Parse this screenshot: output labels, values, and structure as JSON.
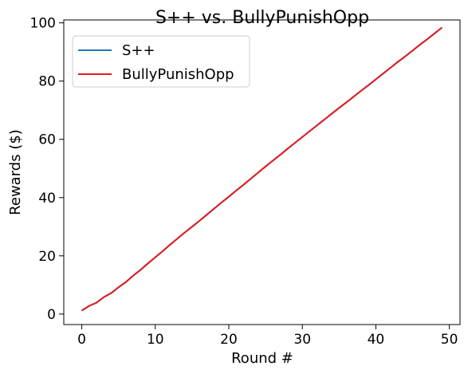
{
  "chart_data": {
    "type": "line",
    "title": "S++ vs. BullyPunishOpp",
    "xlabel": "Round #",
    "ylabel": "Rewards ($)",
    "xlim": [
      -2.45,
      51.45
    ],
    "ylim": [
      -3.6,
      101.0
    ],
    "xticks": [
      0,
      10,
      20,
      30,
      40,
      50
    ],
    "yticks": [
      0,
      20,
      40,
      60,
      80,
      100
    ],
    "legend_position": "top-left",
    "series": [
      {
        "name": "S++",
        "color": "#1f77b4",
        "x": [
          0,
          1,
          2,
          3,
          4,
          5,
          6,
          7,
          8,
          9,
          10,
          11,
          12,
          13,
          14,
          15,
          16,
          17,
          18,
          19,
          20,
          21,
          22,
          23,
          24,
          25,
          26,
          27,
          28,
          29,
          30,
          31,
          32,
          33,
          34,
          35,
          36,
          37,
          38,
          39,
          40,
          41,
          42,
          43,
          44,
          45,
          46,
          47,
          48,
          49
        ],
        "values": [
          1.2,
          2.8,
          3.9,
          5.8,
          7.2,
          9.2,
          11.0,
          13.2,
          15.2,
          17.4,
          19.5,
          21.6,
          23.8,
          25.9,
          28.0,
          30.0,
          32.0,
          34.1,
          36.2,
          38.3,
          40.3,
          42.4,
          44.4,
          46.5,
          48.6,
          50.7,
          52.7,
          54.7,
          56.8,
          58.8,
          60.8,
          62.8,
          64.8,
          66.8,
          68.8,
          70.8,
          72.7,
          74.7,
          76.7,
          78.6,
          80.6,
          82.6,
          84.6,
          86.6,
          88.5,
          90.5,
          92.5,
          94.4,
          96.4,
          98.4
        ]
      },
      {
        "name": "BullyPunishOpp",
        "color": "#e31a1c",
        "x": [
          0,
          1,
          2,
          3,
          4,
          5,
          6,
          7,
          8,
          9,
          10,
          11,
          12,
          13,
          14,
          15,
          16,
          17,
          18,
          19,
          20,
          21,
          22,
          23,
          24,
          25,
          26,
          27,
          28,
          29,
          30,
          31,
          32,
          33,
          34,
          35,
          36,
          37,
          38,
          39,
          40,
          41,
          42,
          43,
          44,
          45,
          46,
          47,
          48,
          49
        ],
        "values": [
          1.2,
          2.8,
          3.9,
          5.8,
          7.2,
          9.2,
          11.0,
          13.2,
          15.2,
          17.4,
          19.5,
          21.6,
          23.8,
          25.9,
          28.0,
          30.0,
          32.0,
          34.1,
          36.2,
          38.3,
          40.3,
          42.4,
          44.4,
          46.5,
          48.6,
          50.7,
          52.7,
          54.7,
          56.8,
          58.8,
          60.8,
          62.8,
          64.8,
          66.8,
          68.8,
          70.8,
          72.7,
          74.7,
          76.7,
          78.6,
          80.6,
          82.6,
          84.6,
          86.6,
          88.5,
          90.5,
          92.5,
          94.4,
          96.4,
          98.4
        ]
      }
    ]
  }
}
